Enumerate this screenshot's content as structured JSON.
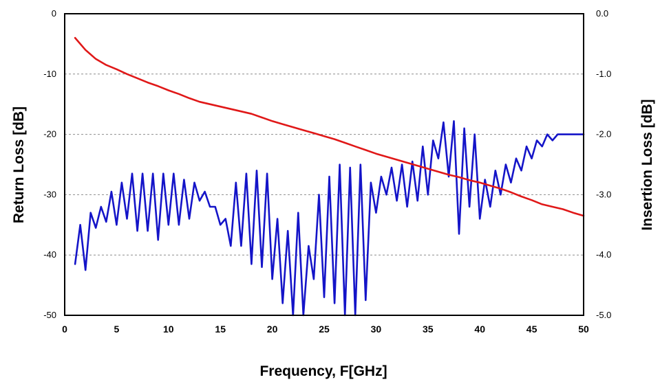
{
  "chart_data": {
    "type": "line",
    "xlabel": "Frequency, F[GHz]",
    "ylabel_left": "Return Loss [dB]",
    "ylabel_right": "Insertion Loss [dB]",
    "xlim": [
      0,
      50
    ],
    "ylim_left": [
      -50,
      0
    ],
    "ylim_right": [
      -5.0,
      0.0
    ],
    "x_ticks": [
      "0",
      "5",
      "10",
      "15",
      "20",
      "25",
      "30",
      "35",
      "40",
      "45",
      "50"
    ],
    "y_left_ticks": [
      "0",
      "-10",
      "-20",
      "-30",
      "-40",
      "-50"
    ],
    "y_right_ticks": [
      "0.0",
      "-1.0",
      "-2.0",
      "-3.0",
      "-4.0",
      "-5.0"
    ],
    "grid": "horizontal dashed",
    "colors": {
      "insertion_loss": "#e01818",
      "return_loss": "#1414c8"
    },
    "series": [
      {
        "axis": "right",
        "color": "#e01818",
        "x": [
          1,
          2,
          3,
          4,
          5,
          6,
          7,
          8,
          9,
          10,
          11,
          12,
          13,
          14,
          15,
          16,
          17,
          18,
          19,
          20,
          21,
          22,
          23,
          24,
          25,
          26,
          27,
          28,
          29,
          30,
          31,
          32,
          33,
          34,
          35,
          36,
          37,
          38,
          39,
          40,
          41,
          42,
          43,
          44,
          45,
          46,
          47,
          48,
          49,
          50
        ],
        "y": [
          -0.4,
          -0.6,
          -0.75,
          -0.85,
          -0.92,
          -1.0,
          -1.07,
          -1.14,
          -1.2,
          -1.27,
          -1.33,
          -1.4,
          -1.46,
          -1.5,
          -1.54,
          -1.58,
          -1.62,
          -1.66,
          -1.72,
          -1.78,
          -1.83,
          -1.88,
          -1.93,
          -1.98,
          -2.03,
          -2.08,
          -2.14,
          -2.2,
          -2.26,
          -2.32,
          -2.37,
          -2.42,
          -2.47,
          -2.52,
          -2.57,
          -2.62,
          -2.67,
          -2.71,
          -2.76,
          -2.8,
          -2.85,
          -2.9,
          -2.96,
          -3.03,
          -3.09,
          -3.16,
          -3.2,
          -3.24,
          -3.3,
          -3.35
        ]
      },
      {
        "axis": "left",
        "color": "#1414c8",
        "x": [
          1.0,
          1.5,
          2.0,
          2.5,
          3.0,
          3.5,
          4.0,
          4.5,
          5.0,
          5.5,
          6.0,
          6.5,
          7.0,
          7.5,
          8.0,
          8.5,
          9.0,
          9.5,
          10.0,
          10.5,
          11.0,
          11.5,
          12.0,
          12.5,
          13.0,
          13.5,
          14.0,
          14.5,
          15.0,
          15.5,
          16.0,
          16.5,
          17.0,
          17.5,
          18.0,
          18.5,
          19.0,
          19.5,
          20.0,
          20.5,
          21.0,
          21.5,
          22.0,
          22.5,
          23.0,
          23.5,
          24.0,
          24.5,
          25.0,
          25.5,
          26.0,
          26.5,
          27.0,
          27.5,
          28.0,
          28.5,
          29.0,
          29.5,
          30.0,
          30.5,
          31.0,
          31.5,
          32.0,
          32.5,
          33.0,
          33.5,
          34.0,
          34.5,
          35.0,
          35.5,
          36.0,
          36.5,
          37.0,
          37.5,
          38.0,
          38.5,
          39.0,
          39.5,
          40.0,
          40.5,
          41.0,
          41.5,
          42.0,
          42.5,
          43.0,
          43.5,
          44.0,
          44.5,
          45.0,
          45.5,
          46.0,
          46.5,
          47.0,
          47.5,
          48.0,
          48.5,
          49.0,
          49.5,
          50.0
        ],
        "y": [
          -41.5,
          -35.0,
          -42.5,
          -33.0,
          -35.5,
          -32.0,
          -34.5,
          -29.5,
          -35.0,
          -28.0,
          -34.0,
          -26.5,
          -36.0,
          -26.5,
          -36.0,
          -26.5,
          -37.5,
          -26.5,
          -35.0,
          -26.5,
          -35.0,
          -27.5,
          -34.0,
          -28.0,
          -31.0,
          -29.5,
          -32.0,
          -32.0,
          -35.0,
          -34.0,
          -38.5,
          -28.0,
          -38.5,
          -26.5,
          -41.5,
          -26.0,
          -42.0,
          -26.5,
          -44.0,
          -34.0,
          -48.0,
          -36.0,
          -50.0,
          -33.0,
          -50.0,
          -38.5,
          -44.0,
          -30.0,
          -47.0,
          -27.0,
          -48.0,
          -25.0,
          -50.0,
          -25.5,
          -50.0,
          -25.0,
          -47.5,
          -28.0,
          -33.0,
          -27.0,
          -30.0,
          -25.5,
          -31.0,
          -25.0,
          -32.0,
          -24.5,
          -31.0,
          -22.0,
          -30.0,
          -21.0,
          -24.0,
          -18.0,
          -27.0,
          -17.8,
          -36.5,
          -19.0,
          -32.0,
          -20.0,
          -34.0,
          -27.5,
          -32.0,
          -26.0,
          -30.0,
          -25.0,
          -28.0,
          -24.0,
          -26.0,
          -22.0,
          -24.0,
          -21.0,
          -22.0,
          -20.0,
          -21.0,
          -20.0,
          -20.0,
          -20.0,
          -20.0,
          -20.0,
          -20.0
        ]
      }
    ]
  }
}
